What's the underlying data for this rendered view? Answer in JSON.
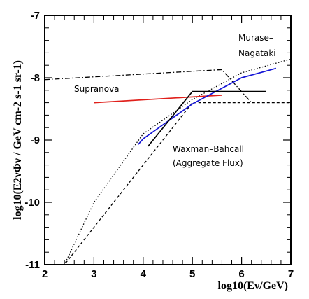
{
  "chart_data": {
    "type": "line",
    "title": "",
    "xlabel": "log10(Eν/GeV)",
    "ylabel": "log10(E2νΦν / GeV cm-2 s-1 sr-1)",
    "xlim": [
      2,
      7
    ],
    "ylim": [
      -11,
      -7
    ],
    "x_ticks": [
      2,
      3,
      4,
      5,
      6,
      7
    ],
    "y_ticks": [
      -11,
      -10,
      -9,
      -8,
      -7
    ],
    "grid": false,
    "legend": "none",
    "annotations": [
      {
        "text": "Murase–",
        "ref_series": "murase"
      },
      {
        "text": "Nagataki",
        "ref_series": "murase"
      },
      {
        "text": "Supranova",
        "ref_series": "supranova"
      },
      {
        "text": "Waxman–Bahcall",
        "ref_series": "waxman_bahcall"
      },
      {
        "text": "(Aggregate Flux)",
        "ref_series": "waxman_bahcall"
      }
    ],
    "series": [
      {
        "id": "murase",
        "color": "#000000",
        "style": "dotted",
        "x": [
          2.0,
          2.4,
          3.0,
          4.0,
          5.0,
          6.0,
          7.0
        ],
        "y": [
          -11.5,
          -11.0,
          -10.0,
          -8.9,
          -8.35,
          -7.92,
          -7.7
        ]
      },
      {
        "id": "supranova",
        "color": "#000000",
        "style": "dashdot",
        "x": [
          2.0,
          5.6,
          6.2
        ],
        "y": [
          -8.03,
          -7.87,
          -8.4
        ]
      },
      {
        "id": "waxman_bahcall",
        "color": "#000000",
        "style": "dashed",
        "x": [
          2.3,
          5.0,
          7.0
        ],
        "y": [
          -11.1,
          -8.4,
          -8.4
        ]
      },
      {
        "id": "red_model",
        "color": "#e0201b",
        "style": "solid",
        "x": [
          3.0,
          5.6
        ],
        "y": [
          -8.4,
          -8.28
        ]
      },
      {
        "id": "blue_model",
        "color": "#1515d6",
        "style": "solid",
        "x": [
          3.9,
          4.0,
          5.0,
          6.0,
          6.7
        ],
        "y": [
          -9.07,
          -8.98,
          -8.42,
          -8.0,
          -7.85
        ]
      },
      {
        "id": "black_model",
        "color": "#000000",
        "style": "solid",
        "x": [
          4.1,
          5.0,
          6.5
        ],
        "y": [
          -9.1,
          -8.22,
          -8.22
        ]
      }
    ]
  }
}
